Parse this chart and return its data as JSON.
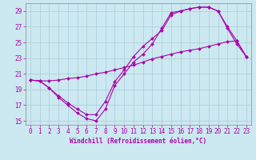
{
  "xlabel": "Windchill (Refroidissement éolien,°C)",
  "line_color": "#aa00aa",
  "bg_color": "#cce8f0",
  "grid_color": "#aaccd8",
  "xlim": [
    -0.5,
    23.5
  ],
  "ylim": [
    14.5,
    30.0
  ],
  "xticks": [
    0,
    1,
    2,
    3,
    4,
    5,
    6,
    7,
    8,
    9,
    10,
    11,
    12,
    13,
    14,
    15,
    16,
    17,
    18,
    19,
    20,
    21,
    22,
    23
  ],
  "yticks": [
    15,
    17,
    19,
    21,
    23,
    25,
    27,
    29
  ],
  "line1_x": [
    0,
    1,
    2,
    3,
    4,
    5,
    6,
    7,
    8,
    9,
    10,
    11,
    12,
    13,
    14,
    15,
    16,
    17,
    18,
    19,
    20,
    21,
    22,
    23
  ],
  "line1_y": [
    20.2,
    20.1,
    19.2,
    18.0,
    17.0,
    16.0,
    15.3,
    15.0,
    16.5,
    19.5,
    21.0,
    22.5,
    23.5,
    24.8,
    26.8,
    28.8,
    29.0,
    29.3,
    29.5,
    29.5,
    29.0,
    26.8,
    24.8,
    23.2
  ],
  "line2_x": [
    0,
    1,
    2,
    3,
    4,
    5,
    6,
    7,
    8,
    9,
    10,
    11,
    12,
    13,
    14,
    15,
    16,
    17,
    18,
    19,
    20,
    21,
    22,
    23
  ],
  "line2_y": [
    20.2,
    20.1,
    19.2,
    18.2,
    17.3,
    16.5,
    15.8,
    15.8,
    17.5,
    20.0,
    21.5,
    23.2,
    24.5,
    25.5,
    26.5,
    28.5,
    29.0,
    29.3,
    29.5,
    29.5,
    29.0,
    27.0,
    25.2,
    23.2
  ],
  "line3_x": [
    0,
    1,
    2,
    3,
    4,
    5,
    6,
    7,
    8,
    9,
    10,
    11,
    12,
    13,
    14,
    15,
    16,
    17,
    18,
    19,
    20,
    21,
    22,
    23
  ],
  "line3_y": [
    20.2,
    20.1,
    20.1,
    20.2,
    20.4,
    20.5,
    20.7,
    21.0,
    21.2,
    21.5,
    21.8,
    22.1,
    22.5,
    22.9,
    23.2,
    23.5,
    23.8,
    24.0,
    24.2,
    24.5,
    24.8,
    25.1,
    25.2,
    23.2
  ],
  "marker": "D",
  "markersize": 2.0,
  "linewidth": 0.8,
  "tick_fontsize": 5.5,
  "xlabel_fontsize": 5.5
}
